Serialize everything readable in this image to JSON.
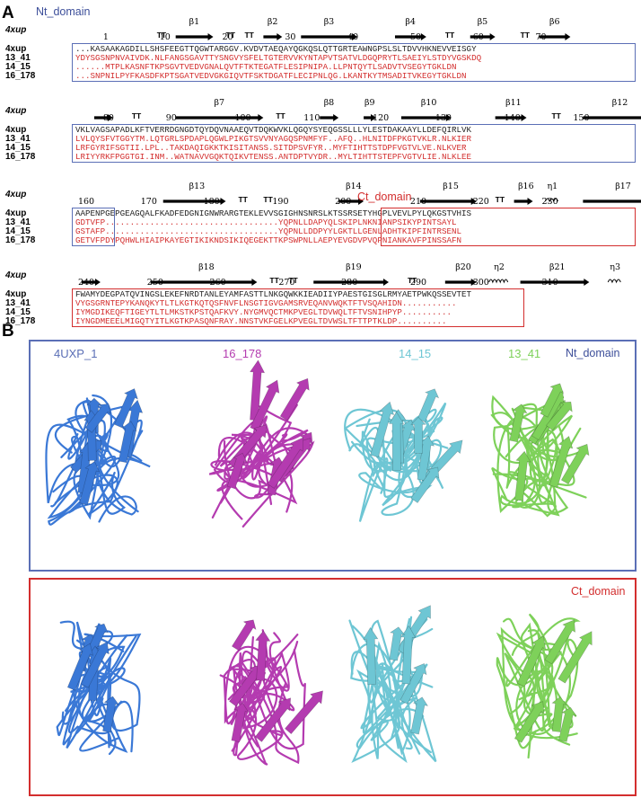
{
  "panels": {
    "a": "A",
    "b": "B"
  },
  "colors": {
    "blue_box": "#5b6fb6",
    "red_box": "#d32e2e",
    "red_text": "#d32e2e",
    "protein_4uxp": "#3a78d6",
    "protein_16_178": "#b43bb0",
    "protein_14_15": "#6ec6d4",
    "protein_13_41": "#7ed15a"
  },
  "domains": {
    "nt": "Nt_domain",
    "ct": "Ct_domain"
  },
  "alignment": {
    "ref_label": "4xup",
    "rows": [
      {
        "ss": [
          {
            "label": "TT",
            "type": "turn",
            "pos": 13
          },
          {
            "label": "β1",
            "type": "arrow",
            "start": 16,
            "end": 22
          },
          {
            "label": "TT",
            "type": "turn",
            "pos": 24
          },
          {
            "label": "TT",
            "type": "turn",
            "pos": 27
          },
          {
            "label": "β2",
            "type": "arrow",
            "start": 30,
            "end": 33
          },
          {
            "label": "β3",
            "type": "arrow",
            "start": 36,
            "end": 45
          },
          {
            "label": "β4",
            "type": "arrow",
            "start": 51,
            "end": 56
          },
          {
            "label": "TT",
            "type": "turn",
            "pos": 59
          },
          {
            "label": "β5",
            "type": "arrow",
            "start": 63,
            "end": 67
          },
          {
            "label": "TT",
            "type": "turn",
            "pos": 71
          },
          {
            "label": "β6",
            "type": "arrow",
            "start": 74,
            "end": 79
          }
        ],
        "numbers": [
          {
            "n": "1",
            "pos": 5
          },
          {
            "n": "10",
            "pos": 14
          },
          {
            "n": "20",
            "pos": 24
          },
          {
            "n": "30",
            "pos": 34
          },
          {
            "n": "40",
            "pos": 44
          },
          {
            "n": "50",
            "pos": 54
          },
          {
            "n": "60",
            "pos": 64
          },
          {
            "n": "70",
            "pos": 74
          }
        ],
        "seqs": [
          {
            "name": "4xup",
            "seq": "...KASAAKAGDILLSHSFEEGTTQGWTARGGV.KVDVTAEQAYQGKQSLQTTGRTEAWNGPSLSLTDVVHKNEVVEISGY"
          },
          {
            "name": "13_41",
            "seq": "YDYSGSNPNVAIVDK.NLFANGSGAVTTYSNGVYSFELTGTERVVKYNTAPVTSATVLDGQPRYTLSAEIYLSTDYVGSKDQ"
          },
          {
            "name": "14_15",
            "seq": "......MTPLKASNFTKPSGVTVEDVGNALQVTFTKTEGATFLESIPNIPA.LLPNTQYTLSADVTVSEGYTGKLDN"
          },
          {
            "name": "16_178",
            "seq": "...SNPNILPYFKASDFKPTSGATVEDVGKGIQVTFSKTDGATFLECIPNLQG.LKANTKYTMSADITVKEGYTGKLDN"
          }
        ],
        "domain": "nt"
      },
      {
        "ss": [
          {
            "label": "",
            "type": "arrow",
            "start": 3,
            "end": 6
          },
          {
            "label": "TT",
            "type": "turn",
            "pos": 9
          },
          {
            "label": "β7",
            "type": "arrow",
            "start": 16,
            "end": 30
          },
          {
            "label": "TT",
            "type": "turn",
            "pos": 32
          },
          {
            "label": "β8",
            "type": "arrow",
            "start": 39,
            "end": 42
          },
          {
            "label": "β9",
            "type": "arrow",
            "start": 46,
            "end": 48
          },
          {
            "label": "β10",
            "type": "arrow",
            "start": 52,
            "end": 60
          },
          {
            "label": "β11",
            "type": "arrow",
            "start": 67,
            "end": 72
          },
          {
            "label": "TT",
            "type": "turn",
            "pos": 76
          },
          {
            "label": "β12",
            "type": "arrow",
            "start": 81,
            "end": 92
          }
        ],
        "numbers": [
          {
            "n": "80",
            "pos": 5
          },
          {
            "n": "90",
            "pos": 15
          },
          {
            "n": "100",
            "pos": 26
          },
          {
            "n": "110",
            "pos": 37
          },
          {
            "n": "120",
            "pos": 48
          },
          {
            "n": "130",
            "pos": 58
          },
          {
            "n": "140",
            "pos": 69
          },
          {
            "n": "150",
            "pos": 80
          }
        ],
        "seqs": [
          {
            "name": "4xup",
            "seq": "VKLVAGSAPADLKFTVERRDGNGDTQYDQVNAAEQVTDQKWVKLQGQYSYEQGSSLLLYLESTDAKAAYLLDEFQIRLVK"
          },
          {
            "name": "13_41",
            "seq": "LVLQYSFVTGGYTM.LQTGRLSPDAPLQGWLPIKGTSVVNYAGQSPNMFYF..AFQ..HLNITDFPKGTVKLR.NLKIER"
          },
          {
            "name": "14_15",
            "seq": "LRFGYRIFSGTII.LPL..TAKDAQIGKKTKISITANSS.SITDPSVFYR..MYFTIHTTSTDPFVGTVLVE.NLKVER"
          },
          {
            "name": "16_178",
            "seq": "LRIYYRKFPGGTGI.INM..WATNAVVGQKTQIKVTENSS.ANTDPTVYDR..MYLTIHTTSTEPFVGTVLIE.NLKLEE"
          }
        ],
        "domain": "nt"
      },
      {
        "ss": [
          {
            "label": "β13",
            "type": "arrow",
            "start": 14,
            "end": 24
          },
          {
            "label": "TT",
            "type": "turn",
            "pos": 26
          },
          {
            "label": "TT",
            "type": "turn",
            "pos": 30
          },
          {
            "label": "β14",
            "type": "arrow",
            "start": 42,
            "end": 46
          },
          {
            "label": "β15",
            "type": "arrow",
            "start": 55,
            "end": 64
          },
          {
            "label": "TT",
            "type": "turn",
            "pos": 67
          },
          {
            "label": "β16",
            "type": "arrow",
            "start": 70,
            "end": 73
          },
          {
            "label": "η1",
            "type": "helix",
            "start": 75,
            "end": 77
          },
          {
            "label": "β17",
            "type": "arrow",
            "start": 81,
            "end": 93
          }
        ],
        "numbers": [
          {
            "n": "160",
            "pos": 1
          },
          {
            "n": "170",
            "pos": 11
          },
          {
            "n": "180",
            "pos": 21
          },
          {
            "n": "190",
            "pos": 32
          },
          {
            "n": "200",
            "pos": 42
          },
          {
            "n": "210",
            "pos": 54
          },
          {
            "n": "220",
            "pos": 64
          },
          {
            "n": "230",
            "pos": 75
          }
        ],
        "seqs": [
          {
            "name": "4xup",
            "seq": "AAPENPGEPGEAGQALFKADFEDGNIGNWRARGTEKLEVVSGIGHNSNRSLKTSSRSETYHGPLVEVLPYLQKGSTVHIS"
          },
          {
            "name": "13_41",
            "seq": "GDTVFP...................................YQPNLLDAPYQLSKIPLNKNIANPSIKYPINTSAYL"
          },
          {
            "name": "14_15",
            "seq": "GSTAFP...................................YQPNLLDDPYYLGKTLLGENLADHTKIPFINTRSENL"
          },
          {
            "name": "16_178",
            "seq": "GETVFPDYPQHWLHIAIPKAYEGTIKIKNDSIKIQEGEKTTKPSWPNLLAEPYEVGDVPVQPNIANKAVFPINSSAFN"
          }
        ],
        "domain": "ct"
      },
      {
        "ss": [
          {
            "label": "",
            "type": "arrow",
            "start": 1,
            "end": 4
          },
          {
            "label": "β18",
            "type": "arrow",
            "start": 12,
            "end": 29
          },
          {
            "label": "TT",
            "type": "turn",
            "pos": 31
          },
          {
            "label": "TT",
            "type": "turn",
            "pos": 34
          },
          {
            "label": "β19",
            "type": "arrow",
            "start": 38,
            "end": 50
          },
          {
            "label": "TT",
            "type": "turn",
            "pos": 53
          },
          {
            "label": "β20",
            "type": "arrow",
            "start": 59,
            "end": 64
          },
          {
            "label": "η2",
            "type": "helix",
            "start": 66,
            "end": 69
          },
          {
            "label": "β21",
            "type": "arrow",
            "start": 71,
            "end": 82
          },
          {
            "label": "η3",
            "type": "helix",
            "start": 85,
            "end": 87
          }
        ],
        "numbers": [
          {
            "n": "240",
            "pos": 1
          },
          {
            "n": "250",
            "pos": 12
          },
          {
            "n": "260",
            "pos": 22
          },
          {
            "n": "270",
            "pos": 33
          },
          {
            "n": "280",
            "pos": 43
          },
          {
            "n": "290",
            "pos": 54
          },
          {
            "n": "300",
            "pos": 64
          },
          {
            "n": "310",
            "pos": 75
          }
        ],
        "seqs": [
          {
            "name": "4xup",
            "seq": "FWAMYDEGPATQVINGSLEKEFNRDTANLEYAMFASTTLNKGQWKKIEADIIYPAESTGISGLRMYAETPWKQSSEVTET"
          },
          {
            "name": "13_41",
            "seq": "VYGSGRNTEPYKANQKYTLTLKGTKQTQSFNVFLNSGTIGVGAMSRVEQANVWQKTFTVSQAHIDN..........."
          },
          {
            "name": "14_15",
            "seq": "IYMGDIKEQFTIGEYTLTLMKSTKPSTQAFKVY.NYGMVQCTMKPVEGLTDVWQLTFTVSNIHPYP.........."
          },
          {
            "name": "16_178",
            "seq": "IYNGDMEEELMIGQTYITLKGTKPASQNFRAY.NNSTVKFGELKPVEGLTDVWSLTFTTPTKLDP.........."
          }
        ],
        "domain": "ct"
      }
    ]
  },
  "proteins": [
    {
      "key": "4uxp",
      "label": "4UXP_1",
      "color": "#3a78d6"
    },
    {
      "key": "16_178",
      "label": "16_178",
      "color": "#b43bb0"
    },
    {
      "key": "14_15",
      "label": "14_15",
      "color": "#6ec6d4"
    },
    {
      "key": "13_41",
      "label": "13_41",
      "color": "#7ed15a"
    }
  ]
}
